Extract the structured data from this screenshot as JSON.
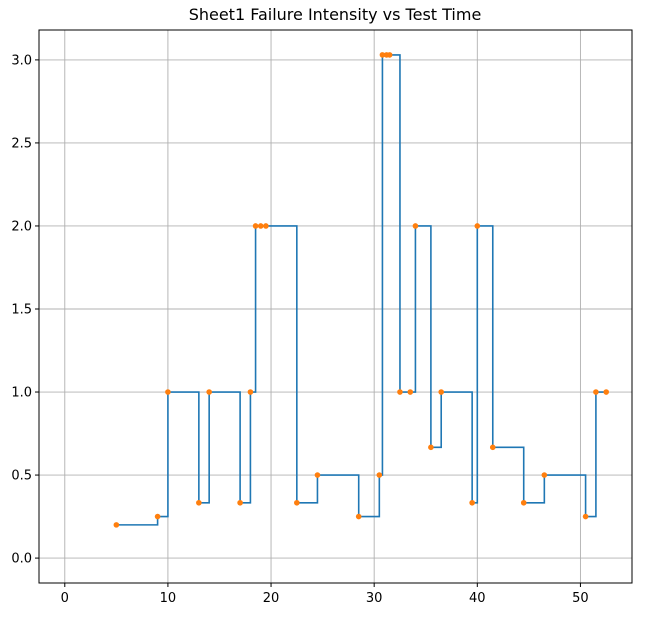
{
  "chart_data": {
    "type": "line",
    "step": "post",
    "title": "Sheet1 Failure Intensity vs Test Time",
    "xlabel": "",
    "ylabel": "",
    "xlim": [
      -2.5,
      55
    ],
    "ylim": [
      -0.15,
      3.18
    ],
    "xticks": [
      0,
      10,
      20,
      30,
      40,
      50
    ],
    "yticks": [
      0.0,
      0.5,
      1.0,
      1.5,
      2.0,
      2.5,
      3.0
    ],
    "xtick_labels": [
      "0",
      "10",
      "20",
      "30",
      "40",
      "50"
    ],
    "ytick_labels": [
      "0.0",
      "0.5",
      "1.0",
      "1.5",
      "2.0",
      "2.5",
      "3.0"
    ],
    "grid": true,
    "legend": "none",
    "colors": {
      "line": "#1f77b4",
      "points": "#ff7f0e",
      "grid": "#b0b0b0",
      "axes": "#000000"
    },
    "step_series": {
      "x": [
        5,
        9,
        10,
        13,
        14,
        17,
        18,
        18.5,
        22.5,
        24.5,
        28.5,
        30.5,
        30.8,
        32.5,
        34,
        35.5,
        36.5,
        39.5,
        40,
        41.5,
        44.5,
        46.5,
        50.5,
        51.5,
        52.5
      ],
      "y": [
        0.2,
        0.25,
        1.0,
        0.333,
        1.0,
        0.333,
        1.0,
        2.0,
        0.333,
        0.5,
        0.25,
        0.5,
        3.03,
        1.0,
        2.0,
        0.667,
        1.0,
        0.333,
        2.0,
        0.667,
        0.333,
        0.5,
        0.25,
        1.0,
        1.0
      ]
    },
    "points": {
      "x": [
        5,
        9,
        10,
        13,
        14,
        17,
        18,
        18.5,
        19,
        19.5,
        22.5,
        24.5,
        28.5,
        30.5,
        30.8,
        31.2,
        31.5,
        32.5,
        33.5,
        34,
        35.5,
        36.5,
        39.5,
        40,
        41.5,
        44.5,
        46.5,
        50.5,
        51.5,
        52.5
      ],
      "y": [
        0.2,
        0.25,
        1.0,
        0.333,
        1.0,
        0.333,
        1.0,
        2.0,
        2.0,
        2.0,
        0.333,
        0.5,
        0.25,
        0.5,
        3.03,
        3.03,
        3.03,
        1.0,
        1.0,
        2.0,
        0.667,
        1.0,
        0.333,
        2.0,
        0.667,
        0.333,
        0.5,
        0.25,
        1.0,
        1.0
      ]
    }
  }
}
